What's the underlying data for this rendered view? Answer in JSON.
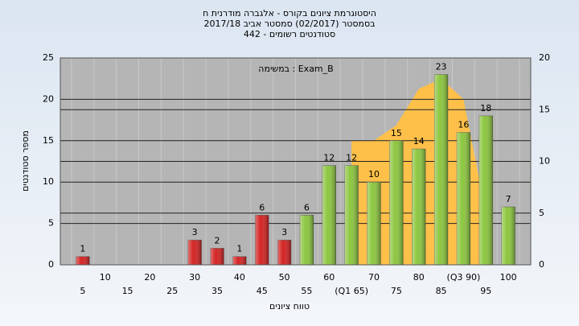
{
  "chart_data": {
    "type": "bar",
    "title_lines": [
      "היסטוגרמת ציונים בקורס - אלגברה מודרנית ח",
      "בסמסטר  (02/2017)  סמסטר אביב 2017/18",
      "סטודנטים רשומים - 442"
    ],
    "annotation": "במשימה : Exam_B",
    "x_label": "טווח ציונים",
    "y_label": "מספר סטודנטים",
    "categories": [
      "5",
      "10",
      "15",
      "20",
      "25",
      "30",
      "35",
      "40",
      "45",
      "50",
      "55",
      "60",
      "(Q1 65)",
      "70",
      "75",
      "80",
      "85",
      "(Q3 90)",
      "95",
      "100"
    ],
    "series": [
      {
        "values": [
          1,
          null,
          null,
          null,
          null,
          3,
          2,
          1,
          6,
          3,
          6,
          12,
          12,
          10,
          15,
          14,
          23,
          16,
          18,
          7
        ],
        "colors": [
          "#d42424",
          null,
          null,
          null,
          null,
          "#d42424",
          "#d42424",
          "#d42424",
          "#d42424",
          "#d42424",
          "#8cc63f",
          "#8cc63f",
          "#8cc63f",
          "#8cc63f",
          "#8cc63f",
          "#8cc63f",
          "#8cc63f",
          "#8cc63f",
          "#8cc63f",
          "#8cc63f"
        ]
      },
      {
        "axis": "y2",
        "type": "area",
        "color": "#ffc04a",
        "values": [
          null,
          null,
          null,
          null,
          null,
          null,
          null,
          null,
          null,
          null,
          null,
          null,
          12,
          12,
          13.5,
          17,
          18,
          16,
          5,
          null
        ]
      }
    ],
    "ylim": [
      0,
      25
    ],
    "yticks": [
      0,
      5,
      10,
      15,
      20,
      25
    ],
    "y2lim": [
      0,
      20
    ],
    "y2ticks": [
      0,
      5,
      10,
      15,
      20
    ],
    "grid": true
  }
}
